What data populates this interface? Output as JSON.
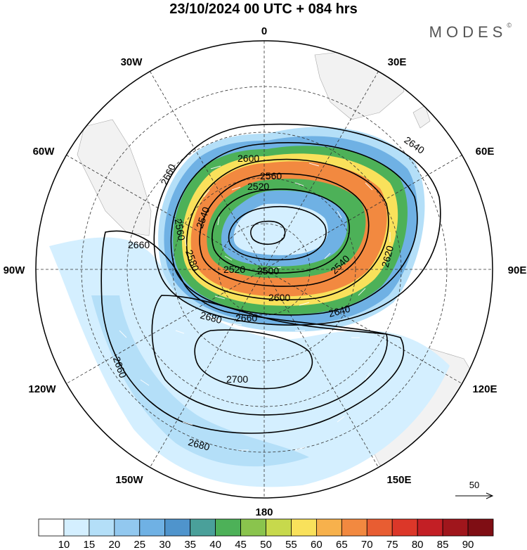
{
  "title": "23/10/2024  00 UTC  + 084 hrs",
  "brand": {
    "name": "MODES",
    "mark": "©"
  },
  "longitude_labels": [
    "0",
    "30E",
    "60E",
    "90E",
    "120E",
    "150E",
    "180",
    "150W",
    "120W",
    "90W",
    "60W",
    "30W"
  ],
  "contour_labels": [
    "2500",
    "2520",
    "2520",
    "2540",
    "2540",
    "2560",
    "2560",
    "2580",
    "2600",
    "2600",
    "2620",
    "2640",
    "2640",
    "2660",
    "2660",
    "2660",
    "2660",
    "2680",
    "2680",
    "2700"
  ],
  "colorbar": {
    "ticks": [
      "10",
      "15",
      "20",
      "25",
      "30",
      "35",
      "40",
      "45",
      "50",
      "55",
      "60",
      "65",
      "70",
      "75",
      "80",
      "85",
      "90"
    ],
    "colors": [
      "#ffffff",
      "#d4efff",
      "#b4dff8",
      "#92c8ef",
      "#6fb1e4",
      "#4f94cc",
      "#4aa09a",
      "#4db158",
      "#8ac44d",
      "#c7d94c",
      "#f9e15b",
      "#f7b14c",
      "#f28940",
      "#e85d32",
      "#dc3729",
      "#c31f25",
      "#a0161c",
      "#7f0e14"
    ]
  },
  "vector_reference": {
    "value": "50",
    "icon": "arrow-right-icon"
  },
  "map": {
    "projection": "polar-stereographic",
    "hemisphere": "south",
    "fields": [
      "wind-speed-shading",
      "geopotential-height-contours",
      "wind-vectors"
    ]
  }
}
